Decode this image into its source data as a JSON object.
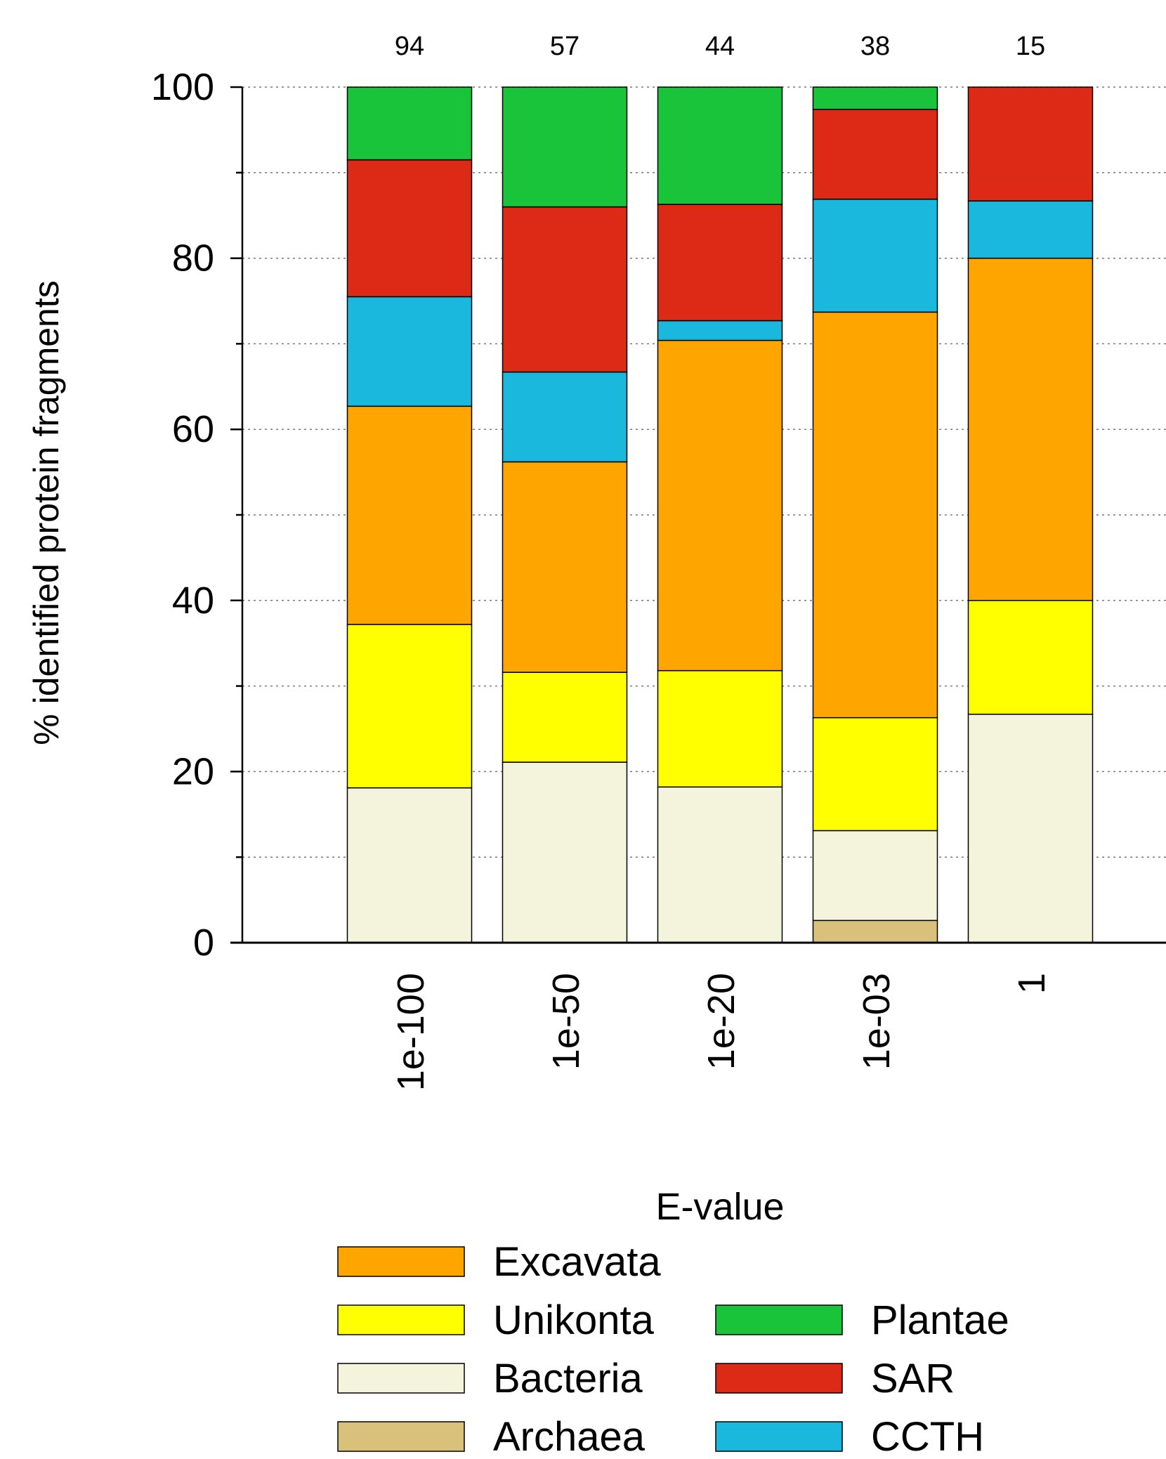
{
  "chart_data": {
    "type": "bar",
    "stacked": true,
    "title": "",
    "xlabel": "E-value",
    "ylabel": "% identified protein fragments",
    "ylim": [
      0,
      100
    ],
    "y_ticks": [
      0,
      20,
      40,
      60,
      80,
      100
    ],
    "y_minor_ticks": [
      10,
      30,
      50,
      70,
      90
    ],
    "grid": true,
    "legend_position": "bottom",
    "categories": [
      "1e-100",
      "1e-50",
      "1e-20",
      "1e-03",
      "1"
    ],
    "counts": [
      "94",
      "57",
      "44",
      "38",
      "15"
    ],
    "series": [
      {
        "name": "Archaea",
        "color": "#d9c07b",
        "values": [
          0,
          0,
          0,
          2.6,
          0
        ]
      },
      {
        "name": "Bacteria",
        "color": "#f4f4dc",
        "values": [
          18.1,
          21.1,
          18.2,
          10.5,
          26.7
        ]
      },
      {
        "name": "Unikonta",
        "color": "#ffff00",
        "values": [
          19.1,
          10.5,
          13.6,
          13.2,
          13.3
        ]
      },
      {
        "name": "Excavata",
        "color": "#ffa500",
        "values": [
          25.5,
          24.6,
          38.6,
          47.4,
          40.0
        ]
      },
      {
        "name": "CCTH",
        "color": "#1ab8dc",
        "values": [
          12.8,
          10.5,
          2.3,
          13.2,
          6.7
        ]
      },
      {
        "name": "SAR",
        "color": "#dd2a16",
        "values": [
          16.0,
          19.3,
          13.6,
          10.5,
          13.3
        ]
      },
      {
        "name": "Plantae",
        "color": "#19c43a",
        "values": [
          8.5,
          14.0,
          13.7,
          2.6,
          0
        ]
      }
    ],
    "legend_order": [
      "Excavata",
      "Unikonta",
      "Bacteria",
      "Archaea",
      "Plantae",
      "SAR",
      "CCTH"
    ]
  }
}
